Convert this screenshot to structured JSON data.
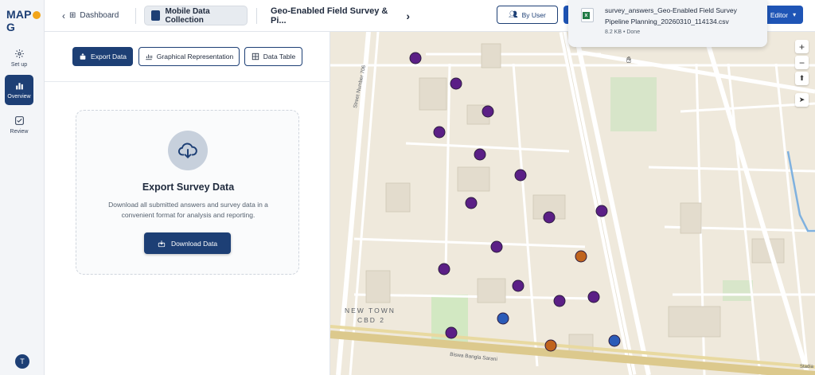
{
  "app": {
    "logo": "MAPOG"
  },
  "rail": {
    "items": [
      {
        "label": "Set up",
        "icon": "gear-icon"
      },
      {
        "label": "Overview",
        "icon": "bar-chart-icon"
      },
      {
        "label": "Review",
        "icon": "checkbox-icon"
      }
    ],
    "avatar": "T"
  },
  "topbar": {
    "dashboard": "Dashboard",
    "section": "Mobile Data Collection",
    "project": "Geo-Enabled Field Survey & Pi...",
    "by_user": "By User",
    "editor": "Editor"
  },
  "tabs": [
    {
      "label": "Export Data",
      "active": true
    },
    {
      "label": "Graphical Representation",
      "active": false
    },
    {
      "label": "Data Table",
      "active": false
    }
  ],
  "export_card": {
    "title": "Export Survey Data",
    "description": "Download all submitted answers and survey data in a convenient format for analysis and reporting.",
    "button": "Download Data"
  },
  "download_popup": {
    "filename": "survey_answers_Geo-Enabled Field Survey Pipeline Planning_20260310_114134.csv",
    "meta": "8.2 KB • Done"
  },
  "map": {
    "area_label_line1": "NEW TOWN",
    "area_label_line2": "CBD 2",
    "road_label_1": "Street Number 706",
    "road_label_2": "Biswa Bangla Sarani",
    "attribution": "Stadia",
    "marker_colors": {
      "purple": "#5b1f86",
      "orange": "#c0641e",
      "blue": "#2b5bb8"
    }
  }
}
